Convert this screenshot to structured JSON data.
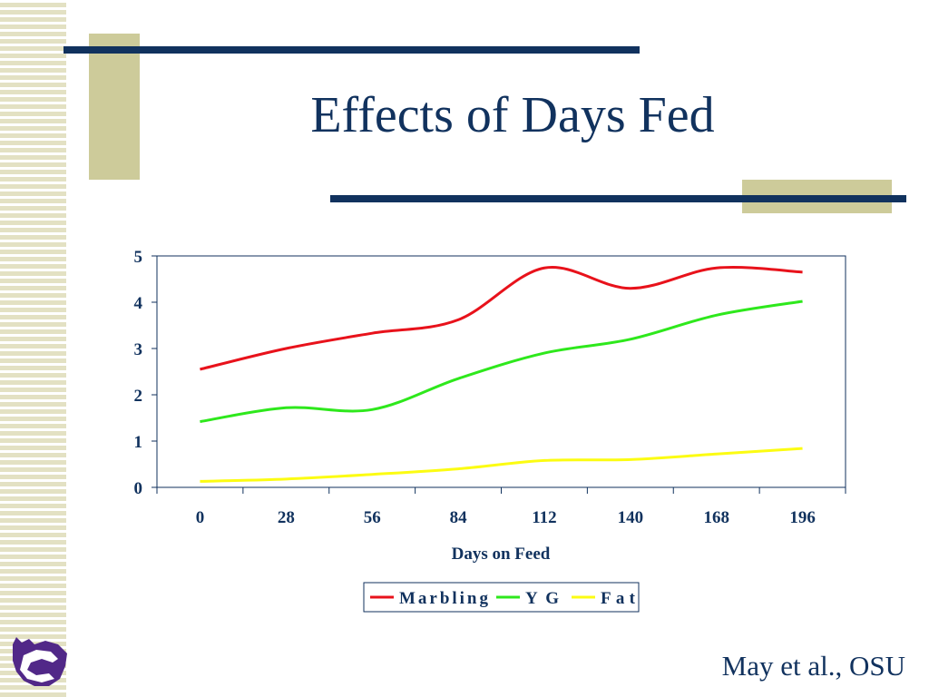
{
  "slide": {
    "title": "Effects of Days Fed",
    "credit": "May et al., OSU"
  },
  "logo": {
    "icon": "wildcat-logo-icon",
    "color": "#512888"
  },
  "colors": {
    "navy": "#11325e",
    "tan": "#cdcb9a",
    "stripe": "#e3e1c3"
  },
  "chart_data": {
    "type": "line",
    "x": [
      0,
      28,
      56,
      84,
      112,
      140,
      168,
      196
    ],
    "x_ticks": [
      "0",
      "28",
      "56",
      "84",
      "112",
      "140",
      "168",
      "196"
    ],
    "y_ticks": [
      "0",
      "1",
      "2",
      "3",
      "4",
      "5"
    ],
    "ylim": [
      0,
      5
    ],
    "xlabel": "Days on Feed",
    "ylabel": "",
    "grid": false,
    "legend_position": "bottom",
    "smooth": true,
    "series": [
      {
        "name": "Marbling",
        "color": "#e8121b",
        "values": [
          2.55,
          3.0,
          3.33,
          3.62,
          4.74,
          4.3,
          4.74,
          4.65
        ]
      },
      {
        "name": "YG",
        "color": "#2ee81c",
        "values": [
          1.42,
          1.72,
          1.68,
          2.35,
          2.9,
          3.2,
          3.72,
          4.02
        ]
      },
      {
        "name": "Fat",
        "color": "#fcfc12",
        "values": [
          0.13,
          0.18,
          0.28,
          0.4,
          0.58,
          0.6,
          0.72,
          0.84
        ]
      }
    ]
  }
}
